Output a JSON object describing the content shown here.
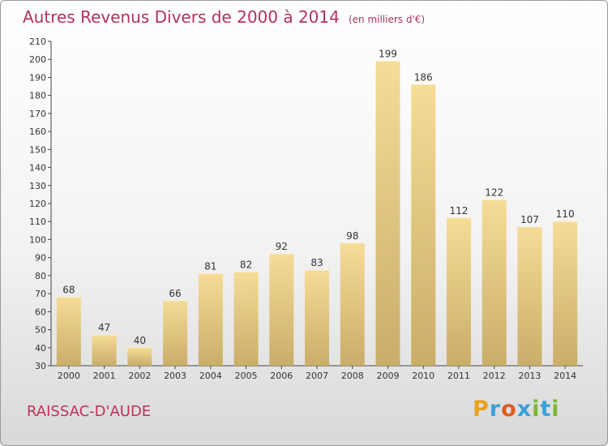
{
  "chart_data": {
    "type": "bar",
    "title": "Autres Revenus Divers de 2000 à 2014",
    "subtitle": "(en milliers d'€)",
    "categories": [
      "2000",
      "2001",
      "2002",
      "2003",
      "2004",
      "2005",
      "2006",
      "2007",
      "2008",
      "2009",
      "2010",
      "2011",
      "2012",
      "2013",
      "2014"
    ],
    "values": [
      68,
      47,
      40,
      66,
      81,
      82,
      92,
      83,
      98,
      199,
      186,
      112,
      122,
      107,
      110
    ],
    "ylim": [
      30,
      210
    ],
    "yticks": [
      30,
      40,
      50,
      60,
      70,
      80,
      90,
      100,
      110,
      120,
      130,
      140,
      150,
      160,
      170,
      180,
      190,
      200,
      210
    ],
    "grid": false,
    "bar_color_top": "#f6dc96",
    "bar_color_bottom": "#c9ad68"
  },
  "commune": "RAISSAC-D'AUDE",
  "logo": {
    "letters": [
      "P",
      "r",
      "o",
      "x",
      "i",
      "t",
      "i"
    ],
    "colors": [
      "#e8a020",
      "#3aa0d8",
      "#e05a20",
      "#3aa0d8",
      "#7ab830",
      "#3aa0d8",
      "#7ab830"
    ]
  },
  "title_color": "#b03060"
}
